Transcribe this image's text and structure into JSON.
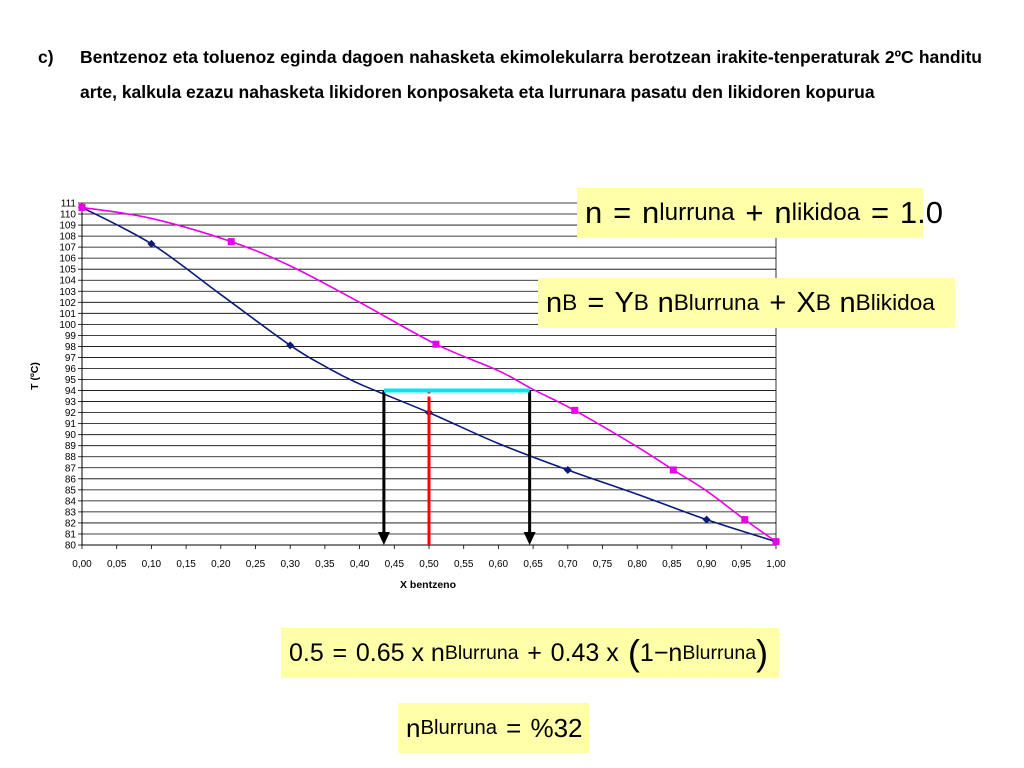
{
  "problem": {
    "label": "c)",
    "text": "Bentzenoz eta toluenoz eginda dagoen nahasketa ekimolekularra berotzean irakite-tenperaturak 2ºC handitu arte, kalkula ezazu nahasketa likidoren konposaketa eta lurrunara pasatu den likidoren kopurua"
  },
  "equations": {
    "eq1": {
      "n": "n",
      "eq": "=",
      "n_lurruna": "n",
      "sub_lurruna": "lurruna",
      "plus": "+",
      "n_likidoa": "n",
      "sub_likidoa": "likidoa",
      "eq2": "=",
      "value": "1.0"
    },
    "eq2": {
      "nB": "n",
      "sub_B": "B",
      "eq": "=",
      "Y": "Y",
      "sub_YB": "B",
      "n1": "n",
      "sub_n1": "Blurruna",
      "plus": "+",
      "X": "X",
      "sub_XB": "B",
      "n2": "n",
      "sub_n2": "Blikidoa"
    },
    "eq3": {
      "lhs": "0.5",
      "eq": "=",
      "term1": "0.65 x n",
      "sub1": "Blurruna",
      "plus": "+",
      "term2": "0.43 x",
      "lparen": "(",
      "one": "1",
      "minus": "−",
      "n": "n",
      "sub2": "Blurruna",
      "rparen": ")"
    },
    "eq4": {
      "n": "n",
      "sub": "Blurruna",
      "eq": "=",
      "value": "%32"
    }
  },
  "chart_data": {
    "type": "line",
    "xlabel": "X bentzeno",
    "ylabel": "T (ºC)",
    "xlim": [
      0,
      1
    ],
    "ylim": [
      80,
      111
    ],
    "x_ticks": [
      "0,00",
      "0,05",
      "0,10",
      "0,15",
      "0,20",
      "0,25",
      "0,30",
      "0,35",
      "0,40",
      "0,45",
      "0,50",
      "0,55",
      "0,60",
      "0,65",
      "0,70",
      "0,75",
      "0,80",
      "0,85",
      "0,90",
      "0,95",
      "1,00"
    ],
    "y_ticks": [
      "80",
      "81",
      "82",
      "83",
      "84",
      "85",
      "86",
      "87",
      "88",
      "89",
      "90",
      "91",
      "92",
      "93",
      "94",
      "95",
      "96",
      "97",
      "98",
      "99",
      "100",
      "101",
      "102",
      "103",
      "104",
      "105",
      "106",
      "107",
      "108",
      "109",
      "110",
      "111"
    ],
    "grid": "horizontal",
    "series": [
      {
        "color": "#0a1a7a",
        "marker": "diamond",
        "curve": [
          [
            0,
            110.6
          ],
          [
            0.1,
            107.3
          ],
          [
            0.2,
            102.7
          ],
          [
            0.3,
            98.1
          ],
          [
            0.35,
            96.2
          ],
          [
            0.4,
            94.6
          ],
          [
            0.5,
            92.0
          ],
          [
            0.6,
            89.2
          ],
          [
            0.7,
            86.8
          ],
          [
            0.8,
            84.6
          ],
          [
            0.9,
            82.3
          ],
          [
            1.0,
            80.3
          ]
        ],
        "markers": [
          [
            0,
            110.6
          ],
          [
            0.1,
            107.3
          ],
          [
            0.3,
            98.1
          ],
          [
            0.5,
            92.0
          ],
          [
            0.7,
            86.8
          ],
          [
            0.9,
            82.3
          ],
          [
            1.0,
            80.3
          ]
        ]
      },
      {
        "color": "#e800e8",
        "marker": "square",
        "curve": [
          [
            0,
            110.6
          ],
          [
            0.1,
            109.6
          ],
          [
            0.215,
            107.5
          ],
          [
            0.3,
            105.3
          ],
          [
            0.4,
            102.0
          ],
          [
            0.51,
            98.2
          ],
          [
            0.6,
            95.8
          ],
          [
            0.65,
            94.1
          ],
          [
            0.71,
            92.2
          ],
          [
            0.8,
            88.9
          ],
          [
            0.852,
            86.8
          ],
          [
            0.9,
            84.9
          ],
          [
            0.955,
            82.3
          ],
          [
            1.0,
            80.3
          ]
        ],
        "markers": [
          [
            0,
            110.6
          ],
          [
            0.215,
            107.5
          ],
          [
            0.51,
            98.2
          ],
          [
            0.71,
            92.2
          ],
          [
            0.852,
            86.8
          ],
          [
            0.955,
            82.3
          ],
          [
            1.0,
            80.3
          ]
        ]
      }
    ],
    "annotations": {
      "tie_line": {
        "x1": 0.435,
        "x2": 0.645,
        "y": 94.0,
        "color": "#00e5ee"
      },
      "down_arrows": [
        {
          "x": 0.435,
          "y": 94.0
        },
        {
          "x": 0.645,
          "y": 94.0
        }
      ],
      "red_line": {
        "x": 0.5,
        "y": 94.0,
        "color": "#ff0000"
      }
    }
  }
}
